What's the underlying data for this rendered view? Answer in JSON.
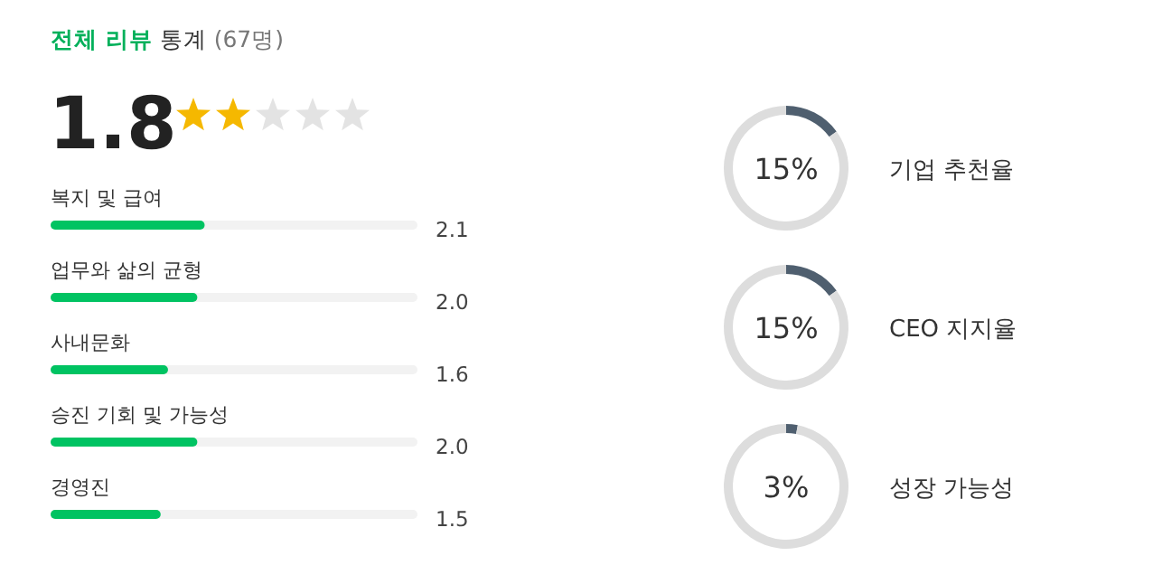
{
  "chart_data": [
    {
      "type": "other",
      "title": "전체 리뷰 통계 (67명)",
      "annotations": [
        "1.8"
      ]
    },
    {
      "type": "bar",
      "orientation": "horizontal",
      "categories": [
        "복지 및 급여",
        "업무와 삶의 균형",
        "사내문화",
        "승진 기회 및 가능성",
        "경영진"
      ],
      "values": [
        2.1,
        2.0,
        1.6,
        2.0,
        1.5
      ],
      "color": "#00c362",
      "xlim": [
        0,
        5
      ],
      "value_labels": [
        "2.1",
        "2.0",
        "1.6",
        "2.0",
        "1.5"
      ]
    },
    {
      "type": "donut",
      "title": "기업 추천율",
      "categories": [
        null,
        null
      ],
      "values": [
        15,
        85
      ],
      "colors": [
        "#4f5f6f",
        "#dddddd"
      ],
      "annotations": [
        "15%"
      ]
    },
    {
      "type": "donut",
      "title": "CEO 지지율",
      "categories": [
        null,
        null
      ],
      "values": [
        15,
        85
      ],
      "colors": [
        "#4f5f6f",
        "#dddddd"
      ],
      "annotations": [
        "15%"
      ]
    },
    {
      "type": "donut",
      "title": "성장 가능성",
      "categories": [
        null,
        null
      ],
      "values": [
        3,
        97
      ],
      "colors": [
        "#4f5f6f",
        "#dddddd"
      ],
      "annotations": [
        "3%"
      ]
    }
  ]
}
